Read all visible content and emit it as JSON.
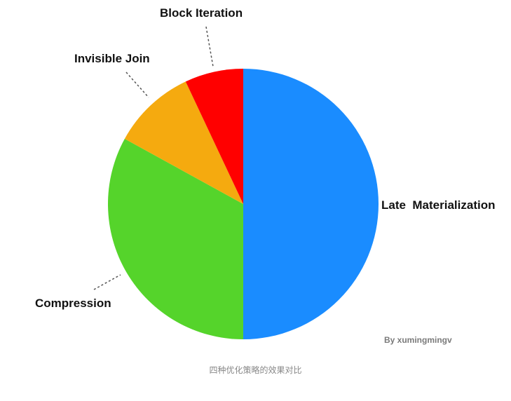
{
  "chart_data": {
    "type": "pie",
    "start_angle_deg": 0,
    "direction": "clockwise",
    "slices": [
      {
        "label": "Late  Materialization",
        "value": 50,
        "color": "#1a8cff"
      },
      {
        "label": "Compression",
        "value": 33,
        "color": "#55d42b"
      },
      {
        "label": "Invisible Join",
        "value": 10,
        "color": "#f5aa0f"
      },
      {
        "label": "Block Iteration",
        "value": 7,
        "color": "#ff0000"
      }
    ],
    "credit": "By  xumingmingv"
  },
  "caption": "四种优化策略的效果对比"
}
